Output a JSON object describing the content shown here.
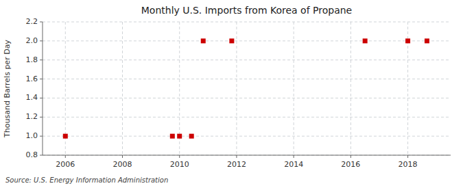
{
  "chart_data": {
    "type": "scatter",
    "title": "Monthly U.S. Imports from Korea of Propane",
    "ylabel": "Thousand Barrels per Day",
    "source": "Source: U.S. Energy Information Administration",
    "x": [
      2006.0,
      2009.75,
      2010.0,
      2010.42,
      2010.83,
      2011.83,
      2016.5,
      2018.0,
      2018.67
    ],
    "values": [
      1.0,
      1.0,
      1.0,
      1.0,
      2.0,
      2.0,
      2.0,
      2.0,
      2.0
    ],
    "color": "#cc0000",
    "marker": "square",
    "xlim": [
      2005.2,
      2019.5
    ],
    "ylim": [
      0.8,
      2.2
    ],
    "xticks": [
      2006,
      2008,
      2010,
      2012,
      2014,
      2016,
      2018
    ],
    "yticks": [
      0.8,
      {
        "value": 1.0,
        "label": "1.0"
      },
      1.2,
      1.4,
      1.6,
      1.8,
      {
        "value": 2.0,
        "label": "2.0"
      },
      2.2
    ],
    "grid": true
  }
}
